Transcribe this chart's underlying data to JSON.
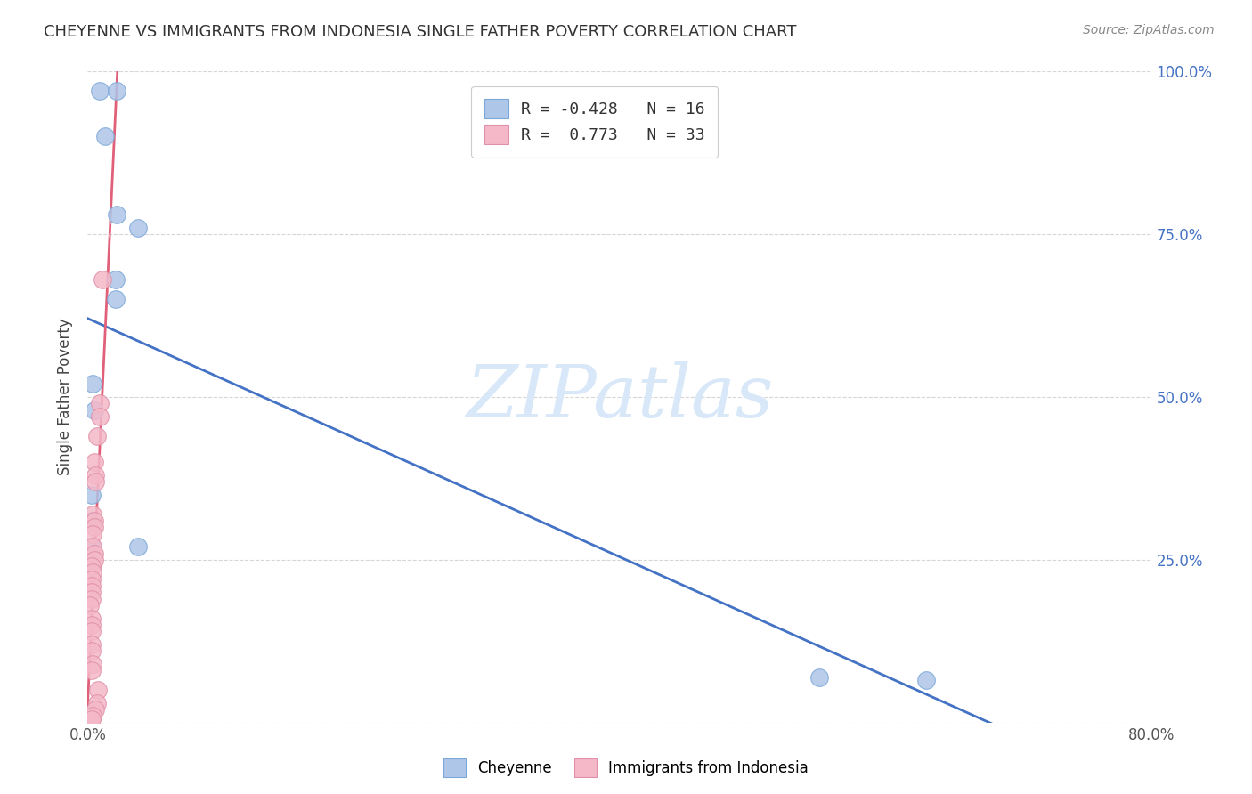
{
  "title": "CHEYENNE VS IMMIGRANTS FROM INDONESIA SINGLE FATHER POVERTY CORRELATION CHART",
  "source": "Source: ZipAtlas.com",
  "ylabel": "Single Father Poverty",
  "xlim": [
    0.0,
    0.8
  ],
  "ylim": [
    0.0,
    1.0
  ],
  "cheyenne_points": [
    [
      0.009,
      0.97
    ],
    [
      0.022,
      0.97
    ],
    [
      0.013,
      0.9
    ],
    [
      0.022,
      0.78
    ],
    [
      0.038,
      0.76
    ],
    [
      0.021,
      0.68
    ],
    [
      0.021,
      0.65
    ],
    [
      0.004,
      0.52
    ],
    [
      0.005,
      0.48
    ],
    [
      0.003,
      0.35
    ],
    [
      0.003,
      0.31
    ],
    [
      0.003,
      0.27
    ],
    [
      0.038,
      0.27
    ],
    [
      0.55,
      0.07
    ],
    [
      0.63,
      0.065
    ]
  ],
  "indonesia_points": [
    [
      0.011,
      0.68
    ],
    [
      0.009,
      0.49
    ],
    [
      0.009,
      0.47
    ],
    [
      0.007,
      0.44
    ],
    [
      0.005,
      0.4
    ],
    [
      0.006,
      0.38
    ],
    [
      0.006,
      0.37
    ],
    [
      0.004,
      0.32
    ],
    [
      0.005,
      0.31
    ],
    [
      0.005,
      0.3
    ],
    [
      0.004,
      0.29
    ],
    [
      0.004,
      0.27
    ],
    [
      0.005,
      0.26
    ],
    [
      0.005,
      0.25
    ],
    [
      0.003,
      0.24
    ],
    [
      0.004,
      0.23
    ],
    [
      0.003,
      0.22
    ],
    [
      0.003,
      0.21
    ],
    [
      0.003,
      0.2
    ],
    [
      0.003,
      0.19
    ],
    [
      0.002,
      0.18
    ],
    [
      0.003,
      0.16
    ],
    [
      0.003,
      0.15
    ],
    [
      0.003,
      0.14
    ],
    [
      0.003,
      0.12
    ],
    [
      0.003,
      0.11
    ],
    [
      0.004,
      0.09
    ],
    [
      0.003,
      0.08
    ],
    [
      0.008,
      0.05
    ],
    [
      0.007,
      0.03
    ],
    [
      0.006,
      0.02
    ],
    [
      0.004,
      0.01
    ],
    [
      0.003,
      0.005
    ]
  ],
  "cheyenne_color": "#aec6e8",
  "cheyenne_edge_color": "#7ca8d8",
  "indonesia_color": "#f4b8c8",
  "indonesia_edge_color": "#e090a8",
  "cheyenne_line_color": "#4472c4",
  "indonesia_line_color": "#e0607a",
  "indonesia_dash_color": "#e8a0b0",
  "watermark_text": "ZIPatlas",
  "watermark_color": "#d8e8f8",
  "background_color": "#ffffff",
  "grid_color": "#cccccc",
  "title_fontsize": 13,
  "axis_fontsize": 12,
  "legend_fontsize": 13,
  "source_fontsize": 10,
  "marker_size": 200,
  "ytick_positions": [
    0.0,
    0.25,
    0.5,
    0.75,
    1.0
  ],
  "ytick_labels": [
    "",
    "25.0%",
    "50.0%",
    "75.0%",
    "100.0%"
  ],
  "xtick_positions": [
    0.0,
    0.1,
    0.2,
    0.3,
    0.4,
    0.5,
    0.6,
    0.7,
    0.8
  ],
  "xtick_labels": [
    "0.0%",
    "",
    "",
    "",
    "",
    "",
    "",
    "",
    "80.0%"
  ]
}
